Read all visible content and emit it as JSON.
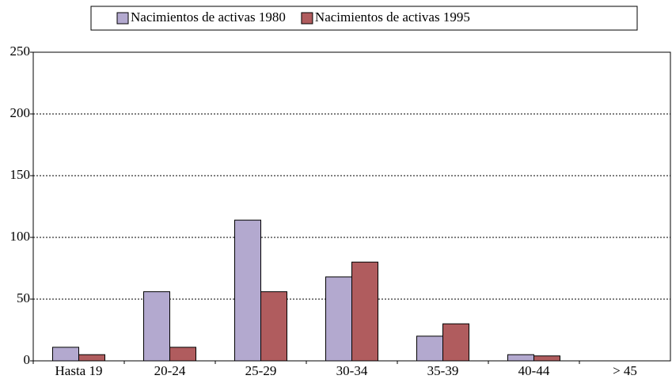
{
  "chart_data": {
    "type": "bar",
    "categories": [
      "Hasta 19",
      "20-24",
      "25-29",
      "30-34",
      "35-39",
      "40-44",
      "> 45"
    ],
    "series": [
      {
        "name": "Nacimientos de activas 1980",
        "color": "#b3a9cf",
        "values": [
          11,
          56,
          114,
          68,
          20,
          5,
          0
        ]
      },
      {
        "name": "Nacimientos de activas 1995",
        "color": "#b05c5e",
        "values": [
          5,
          11,
          56,
          80,
          30,
          4,
          0
        ]
      }
    ],
    "ylim": [
      0,
      250
    ],
    "yticks": [
      0,
      50,
      100,
      150,
      200,
      250
    ],
    "grid": true,
    "legend": "top"
  }
}
